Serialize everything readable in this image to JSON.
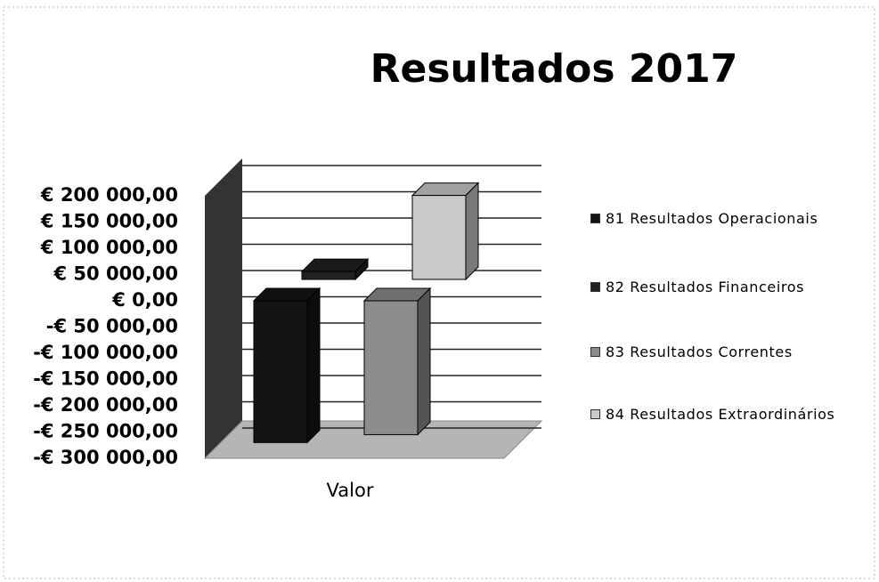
{
  "chart_data": {
    "type": "bar3d",
    "title": "Resultados 2017",
    "categories": [
      "Valor"
    ],
    "series": [
      {
        "name": "81 Resultados Operacionais",
        "color": "#141414",
        "values": [
          -270000
        ]
      },
      {
        "name": "82 Resultados Financeiros",
        "color": "#222222",
        "values": [
          15000
        ]
      },
      {
        "name": "83 Resultados Correntes",
        "color": "#8c8c8c",
        "values": [
          -255000
        ]
      },
      {
        "name": "84 Resultados Extraordinários",
        "color": "#c9c9c9",
        "values": [
          160000
        ]
      }
    ],
    "ylim": [
      -300000,
      200000
    ],
    "yticks": [
      {
        "value": 200000,
        "label": "€ 200 000,00"
      },
      {
        "value": 150000,
        "label": "€ 150 000,00"
      },
      {
        "value": 100000,
        "label": "€ 100 000,00"
      },
      {
        "value": 50000,
        "label": "€ 50 000,00"
      },
      {
        "value": 0,
        "label": "€ 0,00"
      },
      {
        "value": -50000,
        "label": "-€ 50 000,00"
      },
      {
        "value": -100000,
        "label": "-€ 100 000,00"
      },
      {
        "value": -150000,
        "label": "-€ 150 000,00"
      },
      {
        "value": -200000,
        "label": "-€ 200 000,00"
      },
      {
        "value": -250000,
        "label": "-€ 250 000,00"
      },
      {
        "value": -300000,
        "label": "-€ 300 000,00"
      }
    ],
    "grid": true,
    "legend": "right"
  }
}
